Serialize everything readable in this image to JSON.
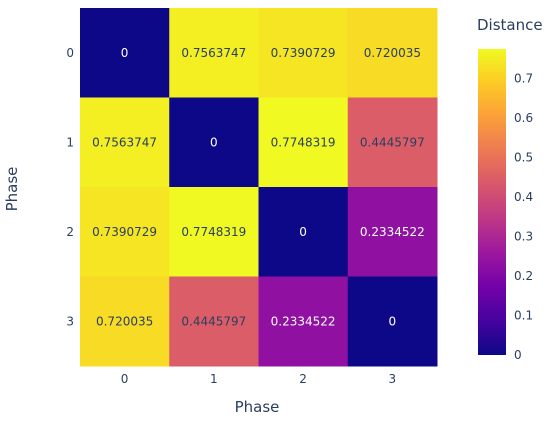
{
  "chart_data": {
    "type": "heatmap",
    "title": "",
    "xlabel": "Phase",
    "ylabel": "Phase",
    "x": [
      "0",
      "1",
      "2",
      "3"
    ],
    "y": [
      "0",
      "1",
      "2",
      "3"
    ],
    "z": [
      [
        0,
        0.7563747,
        0.7390729,
        0.720035
      ],
      [
        0.7563747,
        0,
        0.7748319,
        0.4445797
      ],
      [
        0.7390729,
        0.7748319,
        0,
        0.2334522
      ],
      [
        0.720035,
        0.4445797,
        0.2334522,
        0
      ]
    ],
    "cell_labels": [
      [
        "0",
        "0.7563747",
        "0.7390729",
        "0.720035"
      ],
      [
        "0.7563747",
        "0",
        "0.7748319",
        "0.4445797"
      ],
      [
        "0.7390729",
        "0.7748319",
        "0",
        "0.2334522"
      ],
      [
        "0.720035",
        "0.4445797",
        "0.2334522",
        "0"
      ]
    ],
    "colorbar": {
      "title": "Distance",
      "range": [
        0,
        0.7748319
      ],
      "tick_values": [
        0,
        0.1,
        0.2,
        0.3,
        0.4,
        0.5,
        0.6,
        0.7
      ],
      "tick_labels": [
        "0",
        "0.1",
        "0.2",
        "0.3",
        "0.4",
        "0.5",
        "0.6",
        "0.7"
      ]
    },
    "colorscale": "plasma"
  },
  "colors": {
    "axis_text": "#2a3f5f",
    "label_dark": "#2a3f5f",
    "label_light": "#ffffff"
  }
}
